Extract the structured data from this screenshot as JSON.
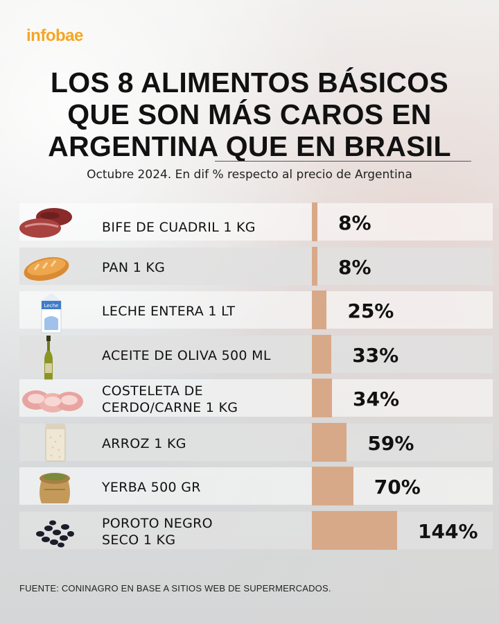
{
  "brand": "infobae",
  "title_lines": [
    "LOS 8 ALIMENTOS BÁSICOS",
    "QUE SON MÁS CAROS EN",
    "ARGENTINA QUE EN BRASIL"
  ],
  "subtitle": "Octubre 2024. En dif % respecto al precio de Argentina",
  "source": "FUENTE: CONINAGRO EN BASE A SITIOS WEB DE SUPERMERCADOS.",
  "colors": {
    "bar": "#d8a988",
    "brand": "#f5a623"
  },
  "chart_data": {
    "type": "bar",
    "orientation": "horizontal",
    "categories": [
      [
        "BIFE DE CUADRIL 1 KG"
      ],
      [
        "PAN 1 KG"
      ],
      [
        "LECHE ENTERA 1 LT"
      ],
      [
        "ACEITE DE OLIVA 500 ML"
      ],
      [
        "COSTELETA DE",
        "CERDO/CARNE 1 KG"
      ],
      [
        "ARROZ 1 KG"
      ],
      [
        "YERBA 500 GR"
      ],
      [
        "POROTO NEGRO",
        "SECO 1 KG"
      ]
    ],
    "values": [
      8,
      8,
      25,
      33,
      34,
      59,
      70,
      144
    ],
    "value_labels": [
      "8%",
      "8%",
      "25%",
      "33%",
      "34%",
      "59%",
      "70%",
      "144%"
    ],
    "icons": [
      "beef-icon",
      "bread-icon",
      "milk-carton-icon",
      "olive-oil-bottle-icon",
      "pork-chop-icon",
      "rice-bag-icon",
      "yerba-sack-icon",
      "black-beans-icon"
    ],
    "icon_text": {
      "milk-carton-icon": "Leche"
    },
    "xlim": [
      0,
      144
    ]
  }
}
